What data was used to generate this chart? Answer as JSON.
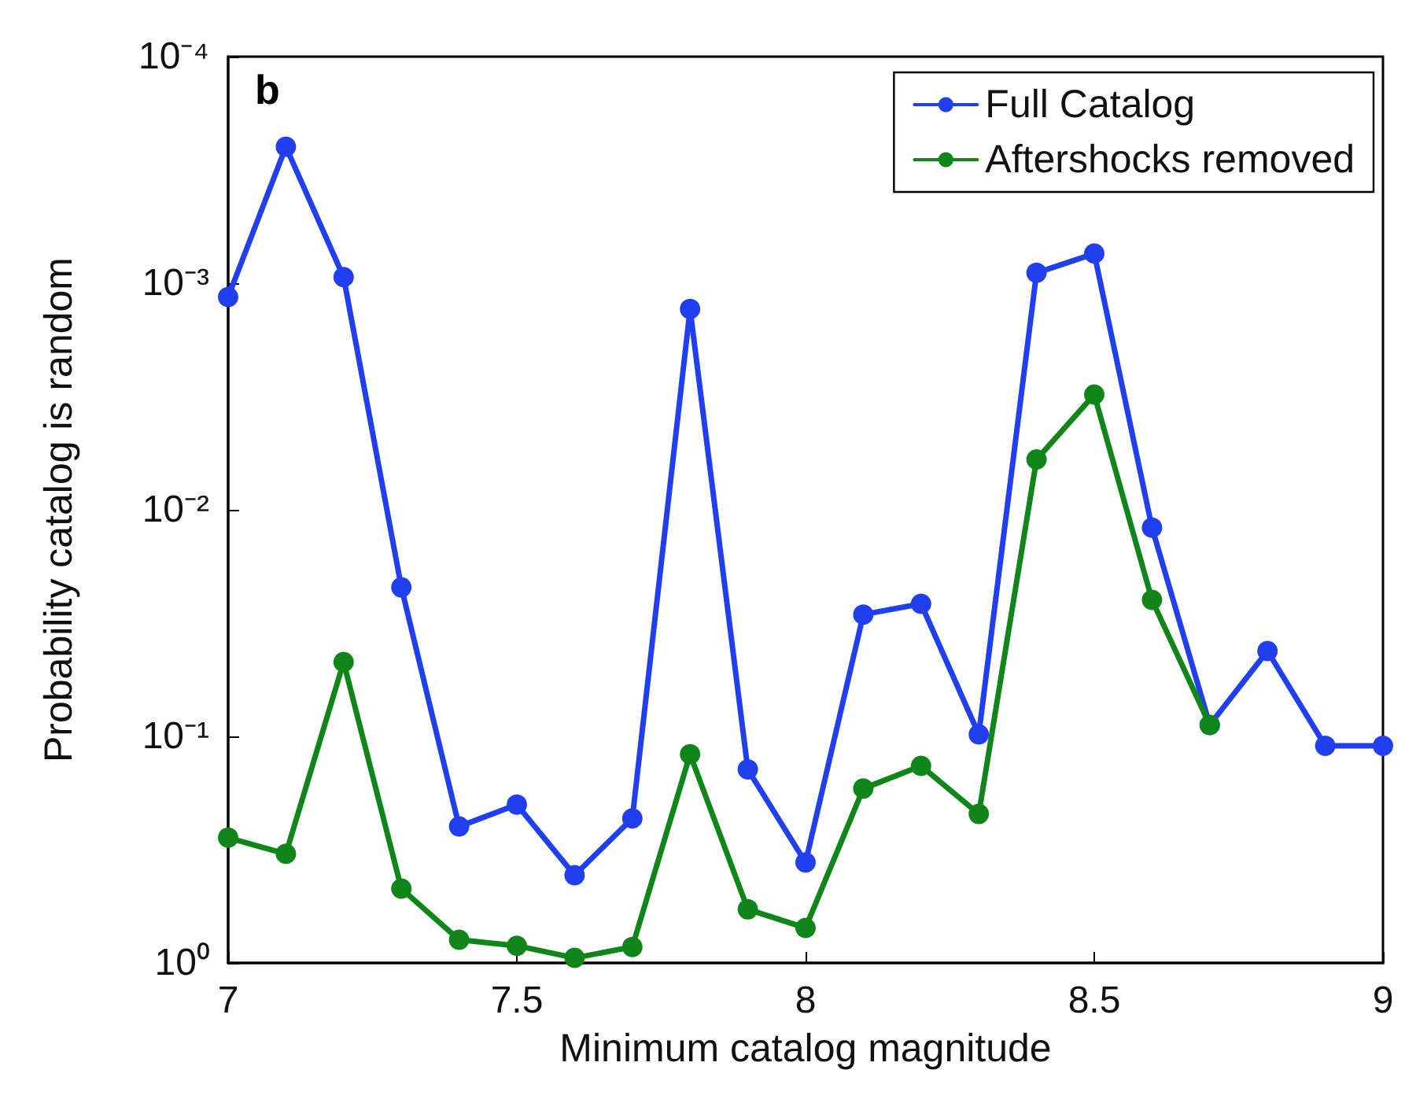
{
  "chart_data": {
    "type": "line",
    "xlabel": "Minimum catalog magnitude",
    "ylabel": "Probability catalog is random",
    "annotations": [
      "b"
    ],
    "x": [
      7,
      7.1,
      7.2,
      7.3,
      7.4,
      7.5,
      7.6,
      7.7,
      7.8,
      7.9,
      8,
      8.1,
      8.2,
      8.3,
      8.4,
      8.5,
      8.6,
      8.7,
      8.8,
      8.9,
      9
    ],
    "series": [
      {
        "name": "Full Catalog",
        "color": "#2040f0",
        "values": [
          0.00115,
          0.00025,
          0.00094,
          0.022,
          0.25,
          0.2,
          0.41,
          0.23,
          0.0013,
          0.14,
          0.36,
          0.029,
          0.026,
          0.098,
          0.0009,
          0.00074,
          0.012,
          0.089,
          0.042,
          0.11,
          0.11
        ]
      },
      {
        "name": "Aftershocks removed",
        "color": "#10861a",
        "values": [
          0.28,
          0.33,
          0.047,
          0.47,
          0.79,
          0.84,
          0.95,
          0.85,
          0.12,
          0.58,
          0.7,
          0.17,
          0.135,
          0.22,
          0.006,
          0.0031,
          0.025,
          0.089,
          null,
          null,
          null
        ]
      }
    ],
    "xlim": [
      7,
      9
    ],
    "xticks": [
      7,
      7.5,
      8,
      8.5,
      9
    ],
    "ylim": [
      1,
      0.0001
    ],
    "yticks": [
      {
        "value": 1,
        "label": "10⁰"
      },
      {
        "value": 0.1,
        "label": "10⁻¹"
      },
      {
        "value": 0.01,
        "label": "10⁻²"
      },
      {
        "value": 0.001,
        "label": "10⁻³"
      },
      {
        "value": 0.0001,
        "label": "10⁻⁴"
      }
    ],
    "log": "y",
    "grid": false,
    "legend": "top right",
    "marker": "circle",
    "line_style": "solid"
  }
}
